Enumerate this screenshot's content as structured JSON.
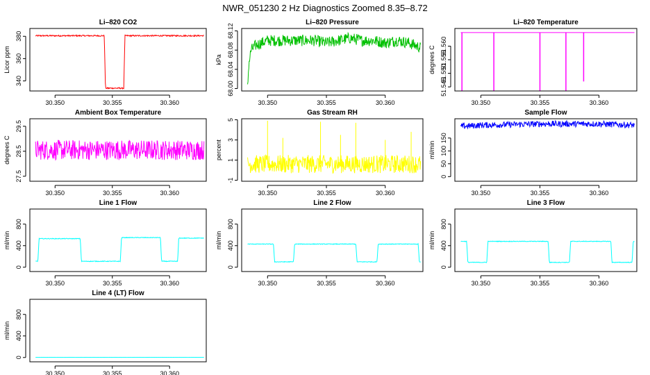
{
  "figure": {
    "title": "NWR_051230  2 Hz Diagnostics Zoomed 8.35–8.72"
  },
  "chart_data": [
    {
      "id": "co2",
      "type": "line",
      "title": "Li–820 CO2",
      "ylabel": "Licor ppm",
      "color": "#ff0000",
      "xlim": [
        30.3478,
        30.3632
      ],
      "ylim": [
        331,
        387
      ],
      "xticks": [
        30.35,
        30.355,
        30.36
      ],
      "xtick_labels": [
        "30.350",
        "30.355",
        "30.360"
      ],
      "yticks": [
        340,
        360,
        380
      ],
      "ytick_labels": [
        "340",
        "360",
        "380"
      ],
      "series": [
        {
          "name": "CO2",
          "x": [
            30.3483,
            30.3543,
            30.3544,
            30.356,
            30.3561,
            30.363
          ],
          "y": [
            380.5,
            380.5,
            333.5,
            333.5,
            380.5,
            380.5
          ],
          "noise": 0.6
        }
      ]
    },
    {
      "id": "pressure",
      "type": "line",
      "title": "Li–820 Pressure",
      "ylabel": "kPa",
      "color": "#00c000",
      "xlim": [
        30.3478,
        30.3632
      ],
      "ylim": [
        67.995,
        68.125
      ],
      "xticks": [
        30.35,
        30.355,
        30.36
      ],
      "xtick_labels": [
        "30.350",
        "30.355",
        "30.360"
      ],
      "yticks": [
        68.0,
        68.04,
        68.08,
        68.12
      ],
      "ytick_labels": [
        "68.00",
        "68.04",
        "68.08",
        "68.12"
      ],
      "series": [
        {
          "name": "Pressure",
          "x": [
            30.3483,
            30.3484,
            30.3486,
            30.349,
            30.35,
            30.351,
            30.352,
            30.353,
            30.354,
            30.355,
            30.356,
            30.357,
            30.358,
            30.359,
            30.36,
            30.361,
            30.362,
            30.363
          ],
          "y": [
            68.0,
            68.05,
            68.08,
            68.09,
            68.1,
            68.1,
            68.1,
            68.1,
            68.1,
            68.095,
            68.1,
            68.105,
            68.1,
            68.1,
            68.095,
            68.1,
            68.095,
            68.085
          ],
          "noise": 0.012
        }
      ]
    },
    {
      "id": "licor_temp",
      "type": "line",
      "title": "Li–820 Temperature",
      "ylabel": "degrees C",
      "color": "#ff00ff",
      "xlim": [
        30.3478,
        30.3632
      ],
      "ylim": [
        51.5435,
        51.5665
      ],
      "xticks": [
        30.35,
        30.355,
        30.36
      ],
      "xtick_labels": [
        "30.350",
        "30.355",
        "30.360"
      ],
      "yticks": [
        51.545,
        51.55,
        51.555,
        51.56
      ],
      "ytick_labels": [
        "51.545",
        "51.550",
        "51.555",
        "51.560"
      ],
      "series": [
        {
          "name": "Temperature",
          "x": [
            30.3483,
            30.363
          ],
          "y": [
            51.565,
            51.565
          ],
          "noise": 0,
          "dips": [
            {
              "x": 30.3484,
              "y": 51.5435
            },
            {
              "x": 30.3511,
              "y": 51.5435
            },
            {
              "x": 30.355,
              "y": 51.5435
            },
            {
              "x": 30.3572,
              "y": 51.5435
            },
            {
              "x": 30.3587,
              "y": 51.547
            }
          ]
        }
      ]
    },
    {
      "id": "box_temp",
      "type": "line",
      "title": "Ambient Box Temperature",
      "ylabel": "degrees C",
      "color": "#ff00ff",
      "xlim": [
        30.3478,
        30.3632
      ],
      "ylim": [
        27.3,
        29.8
      ],
      "xticks": [
        30.35,
        30.355,
        30.36
      ],
      "xtick_labels": [
        "30.350",
        "30.355",
        "30.360"
      ],
      "yticks": [
        27.5,
        28.5,
        29.5
      ],
      "ytick_labels": [
        "27.5",
        "28.5",
        "29.5"
      ],
      "series": [
        {
          "name": "Box Temperature",
          "x": [
            30.3483,
            30.363
          ],
          "y": [
            28.55,
            28.55
          ],
          "noise": 0.4
        }
      ]
    },
    {
      "id": "rh",
      "type": "line",
      "title": "Gas Stream RH",
      "ylabel": "percent",
      "color": "#ffff00",
      "xlim": [
        30.3478,
        30.3632
      ],
      "ylim": [
        -1.1,
        5.1
      ],
      "xticks": [
        30.35,
        30.355,
        30.36
      ],
      "xtick_labels": [
        "30.350",
        "30.355",
        "30.360"
      ],
      "yticks": [
        -1,
        1,
        3,
        5
      ],
      "ytick_labels": [
        "-1",
        "1",
        "3",
        "5"
      ],
      "series": [
        {
          "name": "RH",
          "x": [
            30.3483,
            30.363
          ],
          "y": [
            0.6,
            0.6
          ],
          "noise": 0.9,
          "spikes": [
            {
              "x": 30.35,
              "y": 4.9
            },
            {
              "x": 30.3513,
              "y": 3.2
            },
            {
              "x": 30.3545,
              "y": 4.8
            },
            {
              "x": 30.3562,
              "y": 3.5
            },
            {
              "x": 30.3575,
              "y": 4.7
            },
            {
              "x": 30.36,
              "y": 3.0
            },
            {
              "x": 30.3622,
              "y": 3.8
            }
          ]
        }
      ]
    },
    {
      "id": "sample_flow",
      "type": "line",
      "title": "Sample Flow",
      "ylabel": "ml/min",
      "color": "#0000ff",
      "xlim": [
        30.3478,
        30.3632
      ],
      "ylim": [
        -18,
        225
      ],
      "xticks": [
        30.35,
        30.355,
        30.36
      ],
      "xtick_labels": [
        "30.350",
        "30.355",
        "30.360"
      ],
      "yticks": [
        0,
        50,
        100,
        150
      ],
      "ytick_labels": [
        "0",
        "50",
        "100",
        "150"
      ],
      "series": [
        {
          "name": "Sample Flow",
          "x": [
            30.3483,
            30.35,
            30.355,
            30.36,
            30.363
          ],
          "y": [
            195,
            200,
            205,
            205,
            200
          ],
          "noise": 12
        }
      ]
    },
    {
      "id": "line1",
      "type": "line",
      "title": "Line 1 Flow",
      "ylabel": "ml/min",
      "color": "#00ffff",
      "xlim": [
        30.3478,
        30.3632
      ],
      "ylim": [
        -80,
        1080
      ],
      "xticks": [
        30.35,
        30.355,
        30.36
      ],
      "xtick_labels": [
        "30.350",
        "30.355",
        "30.360"
      ],
      "yticks": [
        0,
        400,
        800
      ],
      "ytick_labels": [
        "0",
        "400",
        "800"
      ],
      "series": [
        {
          "name": "Line 1",
          "x": [
            30.3483,
            30.3485,
            30.3486,
            30.3522,
            30.3523,
            30.3557,
            30.3558,
            30.3592,
            30.3593,
            30.3607,
            30.3608,
            30.363
          ],
          "y": [
            110,
            110,
            530,
            530,
            110,
            110,
            550,
            550,
            110,
            110,
            540,
            540
          ],
          "noise": 6
        }
      ]
    },
    {
      "id": "line2",
      "type": "line",
      "title": "Line 2 Flow",
      "ylabel": "ml/min",
      "color": "#00ffff",
      "xlim": [
        30.3478,
        30.3632
      ],
      "ylim": [
        -80,
        1080
      ],
      "xticks": [
        30.35,
        30.355,
        30.36
      ],
      "xtick_labels": [
        "30.350",
        "30.355",
        "30.360"
      ],
      "yticks": [
        0,
        400,
        800
      ],
      "ytick_labels": [
        "0",
        "400",
        "800"
      ],
      "series": [
        {
          "name": "Line 2",
          "x": [
            30.3483,
            30.3505,
            30.3506,
            30.3522,
            30.3523,
            30.3575,
            30.3576,
            30.3593,
            30.3594,
            30.3628,
            30.3629,
            30.363
          ],
          "y": [
            430,
            430,
            100,
            100,
            430,
            430,
            100,
            100,
            430,
            430,
            100,
            100
          ],
          "noise": 6
        }
      ]
    },
    {
      "id": "line3",
      "type": "line",
      "title": "Line 3 Flow",
      "ylabel": "ml/min",
      "color": "#00ffff",
      "xlim": [
        30.3478,
        30.3632
      ],
      "ylim": [
        -80,
        1080
      ],
      "xticks": [
        30.35,
        30.355,
        30.36
      ],
      "xtick_labels": [
        "30.350",
        "30.355",
        "30.360"
      ],
      "yticks": [
        0,
        400,
        800
      ],
      "ytick_labels": [
        "0",
        "400",
        "800"
      ],
      "series": [
        {
          "name": "Line 3",
          "x": [
            30.3483,
            30.3488,
            30.3489,
            30.3505,
            30.3506,
            30.3557,
            30.3558,
            30.3575,
            30.3576,
            30.361,
            30.3611,
            30.3628,
            30.3629,
            30.363
          ],
          "y": [
            480,
            480,
            90,
            90,
            480,
            480,
            90,
            90,
            480,
            480,
            90,
            90,
            480,
            480
          ],
          "noise": 6
        }
      ]
    },
    {
      "id": "line4",
      "type": "line",
      "title": "Line 4 (LT) Flow",
      "ylabel": "ml/min",
      "color": "#00ffff",
      "xlim": [
        30.3478,
        30.3632
      ],
      "ylim": [
        -80,
        1080
      ],
      "xticks": [
        30.35,
        30.355,
        30.36
      ],
      "xtick_labels": [
        "30.350",
        "30.355",
        "30.360"
      ],
      "yticks": [
        0,
        400,
        800
      ],
      "ytick_labels": [
        "0",
        "400",
        "800"
      ],
      "series": [
        {
          "name": "Line 4",
          "x": [
            30.3483,
            30.363
          ],
          "y": [
            3,
            3
          ],
          "noise": 1
        }
      ]
    }
  ]
}
